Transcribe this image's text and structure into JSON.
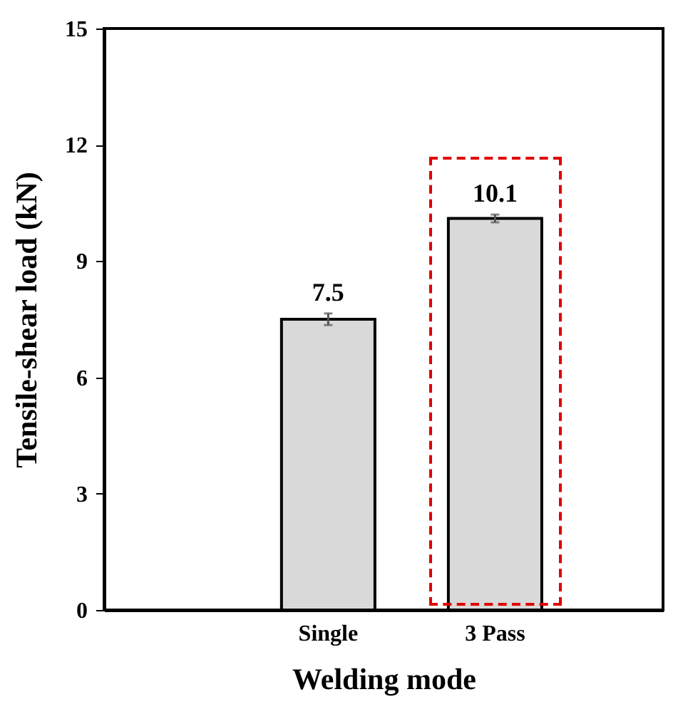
{
  "chart_data": {
    "type": "bar",
    "xlabel": "Welding mode",
    "ylabel": "Tensile-shear load (kN)",
    "categories": [
      "Single",
      "3 Pass"
    ],
    "values": [
      7.5,
      10.1
    ],
    "errors": [
      0.15,
      0.1
    ],
    "color": "#d9d9d9",
    "data_labels": true,
    "ylim": [
      0,
      15
    ],
    "yticks": [
      0,
      3,
      6,
      9,
      12,
      15
    ],
    "grid": false
  }
}
